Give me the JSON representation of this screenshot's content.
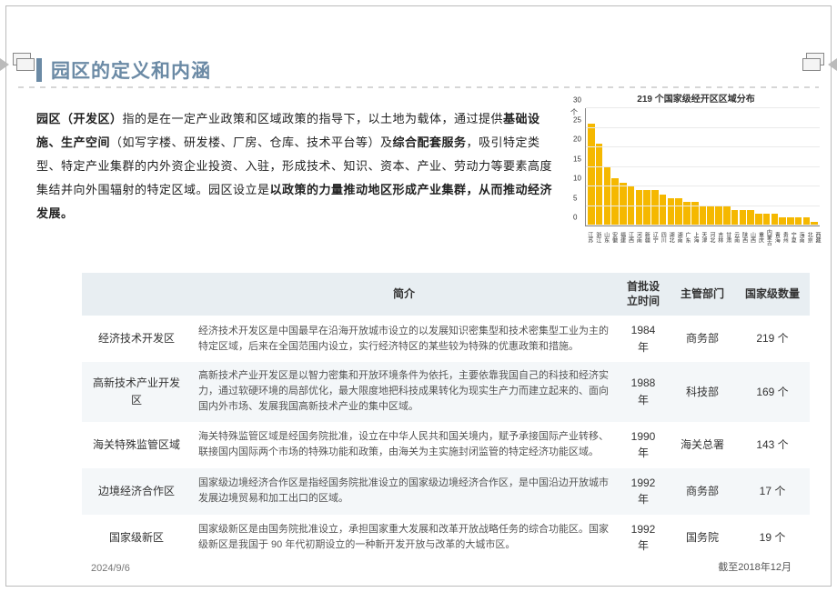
{
  "page": {
    "title": "园区的定义和内涵",
    "intro_html": "<b>园区（开发区）</b>指的是在一定产业政策和区域政策的指导下，以土地为载体，通过提供<b>基础设施、生产空间</b>（如写字楼、研发楼、厂房、仓库、技术平台等）及<b>综合配套服务</b>，吸引特定类型、特定产业集群的内外资企业投资、入驻，形成技术、知识、资本、产业、劳动力等要素高度集结并向外围辐射的特定区域。园区设立是<b>以政策的力量推动地区形成产业集群，从而推动经济发展。</b>",
    "footer_year": "2024/9/6",
    "footer_overlap": "国家级新区",
    "footer_note": "截至2018年12月"
  },
  "chart": {
    "title": "219 个国家级经开区区域分布",
    "y_axis_label": "个",
    "ymax": 30,
    "ytick_step": 5,
    "yticks": [
      0,
      5,
      10,
      15,
      20,
      25,
      30
    ],
    "bar_color": "#f5b800",
    "grid_color": "#eaeaea",
    "categories": [
      "江苏",
      "浙江",
      "山东",
      "安徽",
      "福建",
      "江西",
      "河南",
      "新疆",
      "辽宁",
      "四川",
      "湖北",
      "湖南",
      "广东",
      "上海",
      "天津",
      "河北",
      "吉林",
      "甘肃",
      "云南",
      "陕西",
      "山西",
      "重庆",
      "内蒙古",
      "青海",
      "贵州",
      "宁夏",
      "海南",
      "北京",
      "西藏"
    ],
    "values": [
      26,
      21,
      15,
      12,
      11,
      10,
      9,
      9,
      9,
      8,
      7,
      7,
      6,
      6,
      5,
      5,
      5,
      5,
      4,
      4,
      4,
      3,
      3,
      3,
      2,
      2,
      2,
      2,
      1
    ]
  },
  "table": {
    "headers": {
      "c1": "",
      "c2": "简介",
      "c3": "首批设立时间",
      "c4": "主管部门",
      "c5": "国家级数量"
    },
    "rows": [
      {
        "name": "经济技术开发区",
        "desc": "经济技术开发区是中国最早在沿海开放城市设立的以发展知识密集型和技术密集型工业为主的特定区域，后来在全国范围内设立，实行经济特区的某些较为特殊的优惠政策和措施。",
        "year": "1984 年",
        "dept": "商务部",
        "count": "219 个"
      },
      {
        "name": "高新技术产业开发区",
        "desc": "高新技术产业开发区是以智力密集和开放环境条件为依托，主要依靠我国自己的科技和经济实力，通过软硬环境的局部优化，最大限度地把科技成果转化为现实生产力而建立起来的、面向国内外市场、发展我国高新技术产业的集中区域。",
        "year": "1988 年",
        "dept": "科技部",
        "count": "169 个"
      },
      {
        "name": "海关特殊监管区域",
        "desc": "海关特殊监管区域是经国务院批准，设立在中华人民共和国关境内，赋予承接国际产业转移、联接国内国际两个市场的特殊功能和政策，由海关为主实施封闭监管的特定经济功能区域。",
        "year": "1990 年",
        "dept": "海关总署",
        "count": "143 个"
      },
      {
        "name": "边境经济合作区",
        "desc": "国家级边境经济合作区是指经国务院批准设立的国家级边境经济合作区，是中国沿边开放城市发展边境贸易和加工出口的区域。",
        "year": "1992 年",
        "dept": "商务部",
        "count": "17 个"
      },
      {
        "name": "国家级新区",
        "desc": "国家级新区是由国务院批准设立，承担国家重大发展和改革开放战略任务的综合功能区。国家级新区是我国于 90 年代初期设立的一种新开发开放与改革的大城市区。",
        "year": "1992 年",
        "dept": "国务院",
        "count": "19 个"
      }
    ]
  }
}
